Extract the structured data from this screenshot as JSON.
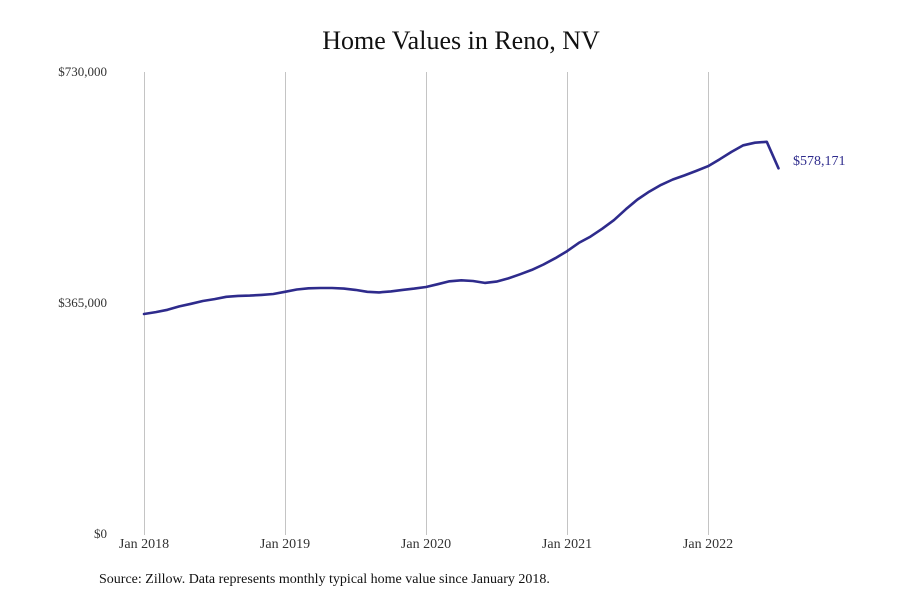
{
  "chart_data": {
    "type": "line",
    "title": "Home Values in Reno, NV",
    "xlabel": "",
    "ylabel": "",
    "ylim": [
      0,
      730000
    ],
    "yticks": [
      {
        "value": 0,
        "label": "$0"
      },
      {
        "value": 365000,
        "label": "$365,000"
      },
      {
        "value": 730000,
        "label": "$730,000"
      }
    ],
    "xticks": [
      "Jan 2018",
      "Jan 2019",
      "Jan 2020",
      "Jan 2021",
      "Jan 2022"
    ],
    "grid": {
      "vertical": true,
      "horizontal": false
    },
    "legend": null,
    "series": [
      {
        "name": "Typical home value",
        "color": "#2e2b8c",
        "x": [
          "2018-01",
          "2018-02",
          "2018-03",
          "2018-04",
          "2018-05",
          "2018-06",
          "2018-07",
          "2018-08",
          "2018-09",
          "2018-10",
          "2018-11",
          "2018-12",
          "2019-01",
          "2019-02",
          "2019-03",
          "2019-04",
          "2019-05",
          "2019-06",
          "2019-07",
          "2019-08",
          "2019-09",
          "2019-10",
          "2019-11",
          "2019-12",
          "2020-01",
          "2020-02",
          "2020-03",
          "2020-04",
          "2020-05",
          "2020-06",
          "2020-07",
          "2020-08",
          "2020-09",
          "2020-10",
          "2020-11",
          "2020-12",
          "2021-01",
          "2021-02",
          "2021-03",
          "2021-04",
          "2021-05",
          "2021-06",
          "2021-07",
          "2021-08",
          "2021-09",
          "2021-10",
          "2021-11",
          "2021-12",
          "2022-01",
          "2022-02",
          "2022-03",
          "2022-04",
          "2022-05",
          "2022-06",
          "2022-07"
        ],
        "values": [
          348500,
          351500,
          355000,
          360500,
          364500,
          369000,
          372000,
          375500,
          377000,
          377500,
          378500,
          380000,
          383500,
          387000,
          389000,
          389500,
          389500,
          388500,
          386500,
          383500,
          382500,
          384000,
          386500,
          388500,
          391000,
          395500,
          400000,
          401500,
          400500,
          397500,
          399500,
          404500,
          411000,
          418000,
          426500,
          436500,
          447500,
          460500,
          470500,
          483000,
          496500,
          513500,
          529000,
          541500,
          552000,
          560500,
          567000,
          574000,
          581500,
          592500,
          604000,
          614500,
          618500,
          620000,
          578171
        ],
        "end_label": "$578,171"
      }
    ],
    "annotations": [
      "$578,171"
    ],
    "source": "Source: Zillow. Data represents monthly typical home value since January 2018."
  }
}
